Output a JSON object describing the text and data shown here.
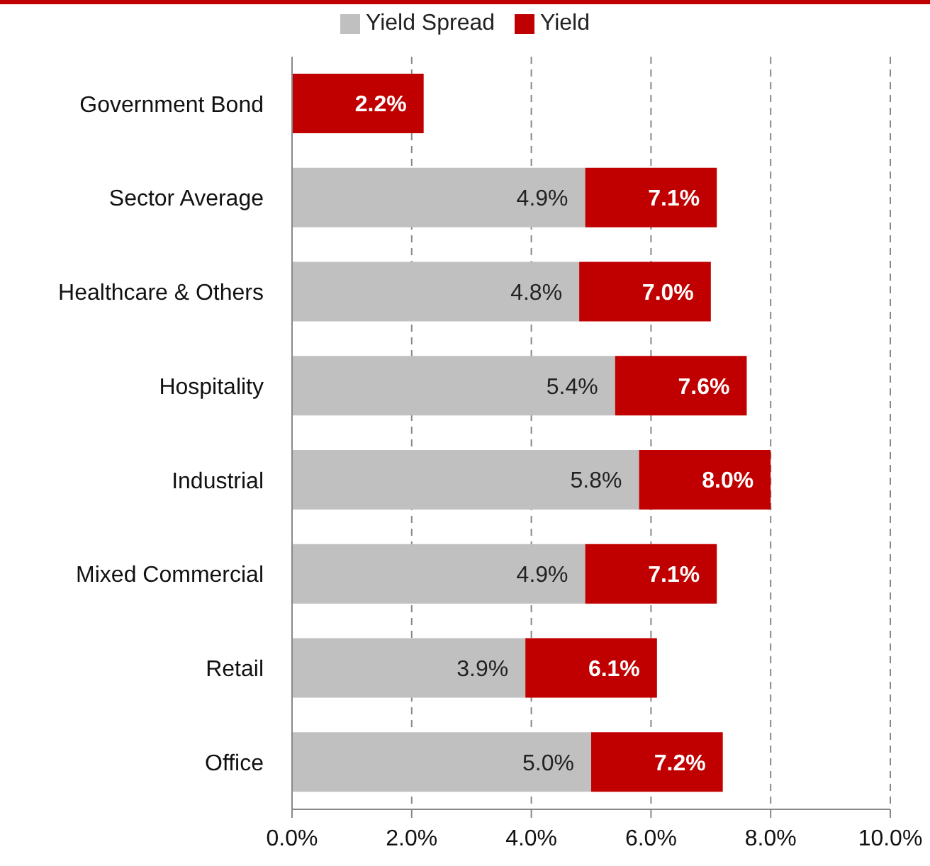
{
  "chart_data": {
    "type": "bar",
    "orientation": "horizontal",
    "stacked": true,
    "categories": [
      "Government Bond",
      "Sector Average",
      "Healthcare & Others",
      "Hospitality",
      "Industrial",
      "Mixed Commercial",
      "Retail",
      "Office"
    ],
    "series": [
      {
        "name": "Yield Spread",
        "color": "#c0c0c0",
        "values": [
          null,
          4.9,
          4.8,
          5.4,
          5.8,
          4.9,
          3.9,
          5.0
        ],
        "value_labels": [
          null,
          "4.9%",
          "4.8%",
          "5.4%",
          "5.8%",
          "4.9%",
          "3.9%",
          "5.0%"
        ]
      },
      {
        "name": "Yield",
        "color": "#c00000",
        "values": [
          2.2,
          2.2,
          2.2,
          2.2,
          2.2,
          2.2,
          2.2,
          2.2
        ]
      }
    ],
    "totals": [
      "2.2%",
      "7.1%",
      "7.0%",
      "7.6%",
      "8.0%",
      "7.1%",
      "6.1%",
      "7.2%"
    ],
    "xlim": [
      0,
      10
    ],
    "xticks": [
      {
        "value": 0,
        "label": "0.0%"
      },
      {
        "value": 2,
        "label": "2.0%"
      },
      {
        "value": 4,
        "label": "4.0%"
      },
      {
        "value": 6,
        "label": "6.0%"
      },
      {
        "value": 8,
        "label": "8.0%"
      },
      {
        "value": 10,
        "label": "10.0%"
      }
    ],
    "grid": "x",
    "legend": "top"
  }
}
